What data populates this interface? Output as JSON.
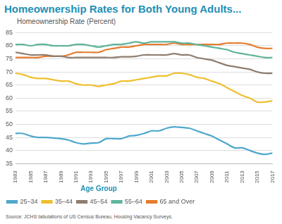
{
  "chart_data": {
    "type": "line",
    "title": "Homeownership Rates for Both Young Adults...",
    "ylabel": "Homeownership Rate (Percent)",
    "source": "Source: JCHS tabulations of US Census Bureau, Housing Vacancy Surveys.",
    "legend_title": "Age Group",
    "legend": "bottom",
    "grid": true,
    "categories": [
      "1983",
      null,
      "1985",
      null,
      "1987",
      null,
      "1989",
      null,
      "1991",
      null,
      "1993",
      null,
      "1995",
      null,
      "1997",
      null,
      "1999",
      null,
      "2001",
      null,
      "2003",
      null,
      "2005",
      null,
      "2007",
      null,
      "2009",
      null,
      "2011",
      null,
      "2013",
      null,
      "2015",
      null,
      "2017"
    ],
    "ylim": [
      35,
      85
    ],
    "yticks": [
      35,
      40,
      45,
      50,
      55,
      60,
      65,
      70,
      75,
      80,
      85
    ],
    "series": [
      {
        "name": "25–34",
        "color": "#4fa8cc",
        "values": [
          46.5,
          46.5,
          45.5,
          45,
          45,
          44.8,
          44.5,
          44,
          43,
          42.5,
          42.8,
          43,
          44.5,
          44.5,
          44.5,
          45.5,
          45.8,
          46.5,
          47.5,
          47.5,
          48.5,
          49,
          48.8,
          48.5,
          47.5,
          46.5,
          45.5,
          44,
          42.5,
          41,
          41,
          40,
          39,
          38.5,
          39
        ]
      },
      {
        "name": "35–44",
        "color": "#eebf2e",
        "values": [
          69.5,
          69,
          68,
          67.5,
          67.5,
          67,
          66.5,
          66.5,
          65.5,
          65,
          65,
          64.5,
          65,
          65.5,
          66.5,
          66.5,
          67,
          67.5,
          68,
          68.5,
          68.5,
          69.5,
          69.5,
          69,
          68,
          67.5,
          66.5,
          65.5,
          64,
          62.5,
          61,
          60,
          58.5,
          58.5,
          59
        ]
      },
      {
        "name": "45–54",
        "color": "#8e7d70",
        "values": [
          77.5,
          77,
          76.5,
          76.5,
          76.5,
          76,
          76,
          75.5,
          75.5,
          75.5,
          75.5,
          75.5,
          75.5,
          75.5,
          75.8,
          75.8,
          76,
          76.5,
          76.5,
          76.5,
          76.5,
          77,
          76.5,
          76.5,
          75.5,
          75,
          74.5,
          73.5,
          72.5,
          72,
          71.5,
          71,
          70,
          69.5,
          69.5
        ]
      },
      {
        "name": "55–64",
        "color": "#5fb39b",
        "values": [
          80.5,
          80.5,
          80,
          80.5,
          80.5,
          80,
          80,
          80,
          80.5,
          80.5,
          80,
          79.5,
          80,
          80.5,
          80.5,
          81,
          81.5,
          81,
          81.5,
          81.5,
          81.5,
          81.5,
          81,
          81,
          80.5,
          80,
          79.5,
          79,
          78.5,
          77.5,
          77,
          76.5,
          76,
          75.5,
          75.5
        ]
      },
      {
        "name": "65 and Over",
        "color": "#e67b2d",
        "values": [
          75.5,
          75.5,
          75.5,
          75.5,
          76,
          76,
          76,
          76.5,
          77.5,
          77.5,
          77.5,
          77.5,
          78.5,
          79,
          79.5,
          79.5,
          80,
          80.5,
          80.5,
          80.5,
          80.5,
          81,
          80.5,
          80.5,
          80.5,
          80.5,
          80.5,
          80.5,
          81,
          81,
          81,
          80.5,
          79.5,
          79,
          79
        ]
      }
    ]
  }
}
